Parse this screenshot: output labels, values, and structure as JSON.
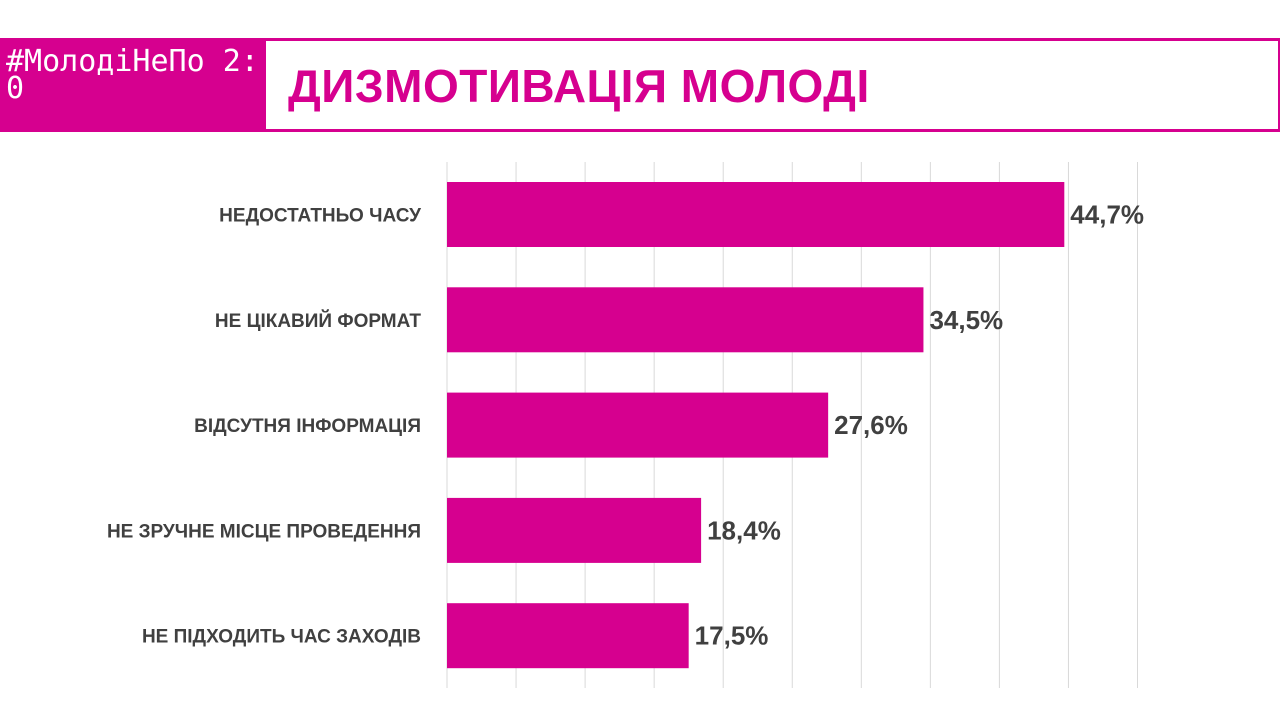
{
  "header": {
    "logo_text": "#МолодіНеПо 2:0",
    "title": "ДИЗМОТИВАЦІЯ МОЛОДІ"
  },
  "colors": {
    "accent": "#d6008f",
    "label": "#404040",
    "grid": "#d9d9d9"
  },
  "chart_data": {
    "type": "bar",
    "orientation": "horizontal",
    "title": "ДИЗМОТИВАЦІЯ МОЛОДІ",
    "categories": [
      "НЕДОСТАТНЬО ЧАСУ",
      "НЕ ЦІКАВИЙ ФОРМАТ",
      "ВІДСУТНЯ ІНФОРМАЦІЯ",
      "НЕ ЗРУЧНЕ МІСЦЕ ПРОВЕДЕННЯ",
      "НЕ ПІДХОДИТЬ ЧАС ЗАХОДІВ"
    ],
    "values": [
      44.7,
      34.5,
      27.6,
      18.4,
      17.5
    ],
    "value_labels": [
      "44,7%",
      "34,5%",
      "27,6%",
      "18,4%",
      "17,5%"
    ],
    "xlim": [
      0,
      50
    ],
    "grid": true,
    "legend": "none"
  }
}
